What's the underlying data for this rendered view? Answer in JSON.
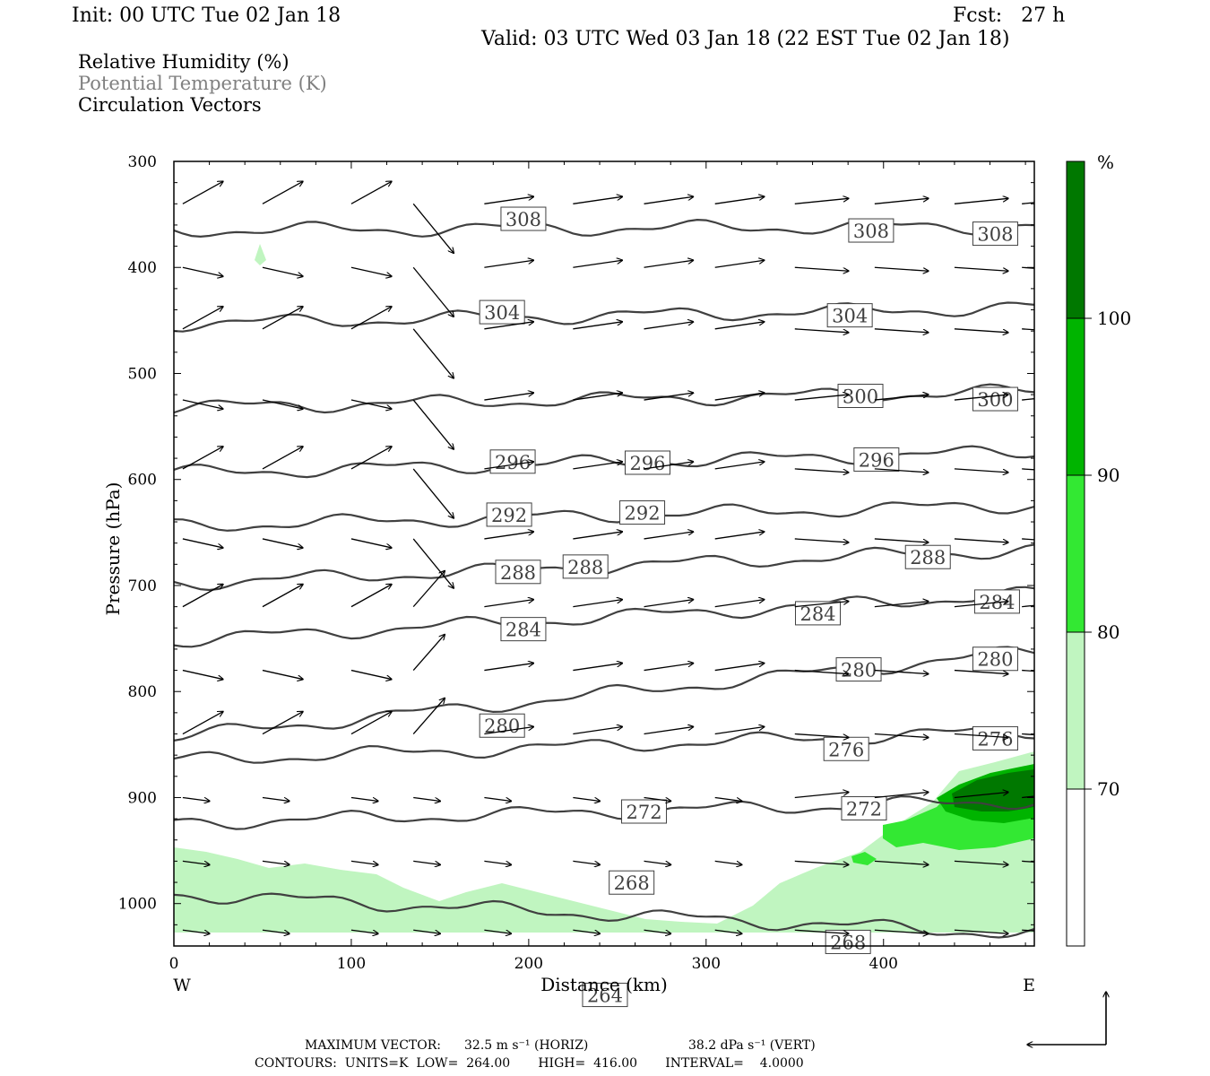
{
  "header": {
    "init": "Init: 00 UTC Tue 02 Jan 18",
    "fcst": "Fcst:   27 h",
    "valid": "Valid: 03 UTC Wed 03 Jan 18 (22 EST Tue 02 Jan 18)"
  },
  "fields": {
    "rh": "Relative Humidity (%)",
    "theta": "Potential Temperature (K)",
    "vectors": "Circulation Vectors"
  },
  "colors": {
    "frame": "#000000",
    "contour": "#404040",
    "theta_text": "#808080",
    "rh_70": "#c0f5c0",
    "rh_80": "#33e833",
    "rh_90": "#00b400",
    "rh_100": "#007800"
  },
  "footer": {
    "max_vector_label": "MAXIMUM VECTOR:",
    "max_vector_horiz": "32.5 m s⁻¹ (HORIZ)",
    "max_vector_vert": "38.2 dPa s⁻¹ (VERT)",
    "contours": "CONTOURS:  UNITS=K  LOW=  264.00       HIGH=  416.00       INTERVAL=    4.0000"
  },
  "chart_data": {
    "type": "contour",
    "xlabel": "Distance (km)",
    "ylabel": "Pressure (hPa)",
    "xlim": [
      0,
      485
    ],
    "ylim": [
      1040,
      300
    ],
    "x_ticks": [
      "0",
      "100",
      "200",
      "300",
      "400"
    ],
    "x_tick_values": [
      0,
      100,
      200,
      300,
      400
    ],
    "y_ticks": [
      "300",
      "400",
      "500",
      "600",
      "700",
      "800",
      "900",
      "1000"
    ],
    "y_tick_values": [
      300,
      400,
      500,
      600,
      700,
      800,
      900,
      1000
    ],
    "direction_left": "W",
    "direction_right": "E",
    "colorbar": {
      "unit": "%",
      "levels": [
        "70",
        "80",
        "90",
        "100"
      ],
      "level_values": [
        70,
        80,
        90,
        100
      ]
    },
    "theta_contours": [
      {
        "value": 308,
        "labels": [
          {
            "x": 197,
            "p": 355,
            "text": "308"
          },
          {
            "x": 393,
            "p": 366,
            "text": "308"
          },
          {
            "x": 463,
            "p": 369,
            "text": "308"
          }
        ]
      },
      {
        "value": 304,
        "labels": [
          {
            "x": 185,
            "p": 443,
            "text": "304"
          },
          {
            "x": 381,
            "p": 446,
            "text": "304"
          }
        ]
      },
      {
        "value": 300,
        "labels": [
          {
            "x": 387,
            "p": 522,
            "text": "300"
          },
          {
            "x": 463,
            "p": 525,
            "text": "300"
          }
        ]
      },
      {
        "value": 296,
        "labels": [
          {
            "x": 191,
            "p": 584,
            "text": "296"
          },
          {
            "x": 267,
            "p": 585,
            "text": "296"
          },
          {
            "x": 396,
            "p": 582,
            "text": "296"
          }
        ]
      },
      {
        "value": 292,
        "labels": [
          {
            "x": 189,
            "p": 634,
            "text": "292"
          },
          {
            "x": 264,
            "p": 632,
            "text": "292"
          }
        ]
      },
      {
        "value": 288,
        "labels": [
          {
            "x": 194,
            "p": 688,
            "text": "288"
          },
          {
            "x": 232,
            "p": 683,
            "text": "288"
          },
          {
            "x": 425,
            "p": 674,
            "text": "288"
          }
        ]
      },
      {
        "value": 284,
        "labels": [
          {
            "x": 197,
            "p": 742,
            "text": "284"
          },
          {
            "x": 363,
            "p": 727,
            "text": "284"
          },
          {
            "x": 464,
            "p": 716,
            "text": "284"
          }
        ]
      },
      {
        "value": 280,
        "labels": [
          {
            "x": 185,
            "p": 833,
            "text": "280"
          },
          {
            "x": 386,
            "p": 780,
            "text": "280"
          },
          {
            "x": 463,
            "p": 770,
            "text": "280"
          }
        ]
      },
      {
        "value": 276,
        "labels": [
          {
            "x": 379,
            "p": 855,
            "text": "276"
          },
          {
            "x": 463,
            "p": 845,
            "text": "276"
          }
        ]
      },
      {
        "value": 272,
        "labels": [
          {
            "x": 265,
            "p": 914,
            "text": "272"
          },
          {
            "x": 389,
            "p": 911,
            "text": "272"
          }
        ]
      },
      {
        "value": 268,
        "labels": [
          {
            "x": 258,
            "p": 981,
            "text": "268"
          },
          {
            "x": 380,
            "p": 1037,
            "text": "268"
          }
        ]
      },
      {
        "value": 264,
        "labels": [
          {
            "x": 243,
            "p": 1087,
            "text": "264"
          }
        ]
      }
    ]
  }
}
